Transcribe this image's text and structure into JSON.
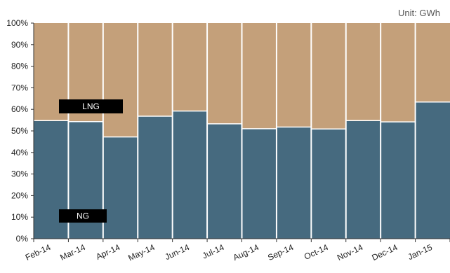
{
  "unit_label": "Unit: GWh",
  "colors": {
    "ng": "#466a7f",
    "lng": "#c4a07a",
    "label_box": "#000000",
    "label_text": "#ffffff",
    "axis": "#333333",
    "text": "#222222",
    "unit_text": "#555555",
    "divider": "#ffffff"
  },
  "chart_data": {
    "type": "bar",
    "stacked": true,
    "percent_scale": true,
    "categories": [
      "Feb-14",
      "Mar-14",
      "Apr-14",
      "May-14",
      "Jun-14",
      "Jul-14",
      "Aug-14",
      "Sep-14",
      "Oct-14",
      "Nov-14",
      "Dec-14",
      "Jan-15"
    ],
    "series": [
      {
        "name": "NG",
        "values": [
          54.8,
          54.3,
          47.2,
          56.8,
          59.2,
          53.3,
          51.0,
          51.8,
          50.9,
          54.8,
          54.2,
          63.4
        ]
      },
      {
        "name": "LNG",
        "values": [
          45.2,
          45.7,
          52.8,
          43.2,
          40.8,
          46.7,
          49.0,
          48.2,
          49.1,
          45.2,
          45.8,
          36.6
        ]
      }
    ],
    "ylim": [
      0,
      100
    ],
    "yticks": [
      "0%",
      "10%",
      "20%",
      "30%",
      "40%",
      "50%",
      "60%",
      "70%",
      "80%",
      "90%",
      "100%"
    ],
    "xlabel": "",
    "ylabel": ""
  }
}
